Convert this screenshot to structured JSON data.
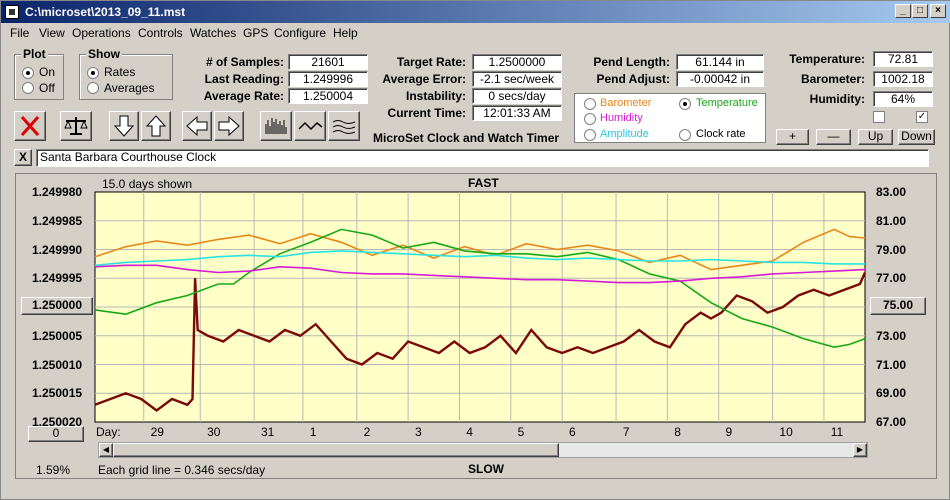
{
  "window": {
    "title": "C:\\microset\\2013_09_11.mst"
  },
  "menu": [
    "File",
    "View",
    "Operations",
    "Controls",
    "Watches",
    "GPS",
    "Configure",
    "Help"
  ],
  "plot": {
    "label": "Plot",
    "on": "On",
    "off": "Off"
  },
  "show": {
    "label": "Show",
    "rates": "Rates",
    "averages": "Averages"
  },
  "stats": {
    "samples_label": "# of Samples:",
    "samples": "21601",
    "last_label": "Last Reading:",
    "last": "1.249996",
    "avg_label": "Average Rate:",
    "avg": "1.250004"
  },
  "target": {
    "rate_label": "Target Rate:",
    "rate": "1.2500000",
    "error_label": "Average Error:",
    "error": "-2.1 sec/week",
    "instability_label": "Instability:",
    "instability": "0 secs/day",
    "time_label": "Current Time:",
    "time": "12:01:33 AM"
  },
  "app_name": "MicroSet Clock and Watch Timer",
  "pendulum": {
    "length_label": "Pend Length:",
    "length": "61.144 in",
    "adjust_label": "Pend Adjust:",
    "adjust": "-0.00042 in"
  },
  "env": {
    "temp_label": "Temperature:",
    "temp": "72.81",
    "baro_label": "Barometer:",
    "baro": "1002.18",
    "hum_label": "Humidity:",
    "hum": "64%"
  },
  "overlay": {
    "barometer": "Barometer",
    "temperature": "Temperature",
    "humidity": "Humidity",
    "amplitude": "Amplitude",
    "clock_rate": "Clock rate"
  },
  "env_buttons": {
    "plus": "+",
    "minus": "—",
    "up": "Up",
    "down": "Down"
  },
  "clock_name": "Santa Barbara Courthouse Clock",
  "close_x": "X",
  "colors": {
    "barometer": "#e8861a",
    "temperature": "#17a817",
    "humidity": "#d61ad6",
    "amplitude": "#29e3e3",
    "rate": "#7a0a0a",
    "plot_bg": "#ffffc8"
  },
  "chart_data": {
    "type": "line",
    "days_shown": "15.0 days shown",
    "top_label": "FAST",
    "bottom_label": "SLOW",
    "grid_note": "Each grid line = 0.346 secs/day",
    "percent": "1.59%",
    "center_left": "1.250000",
    "center_right": "75.00",
    "offset_button": "0",
    "day_prefix": "Day:",
    "y_left_ticks": [
      "1.249980",
      "1.249985",
      "1.249990",
      "1.249995",
      "1.250000",
      "1.250005",
      "1.250010",
      "1.250015",
      "1.250020"
    ],
    "y_right_ticks": [
      "83.00",
      "81.00",
      "79.00",
      "77.00",
      "75.00",
      "73.00",
      "71.00",
      "69.00",
      "67.00"
    ],
    "x_day_labels": [
      {
        "day": "29",
        "t": 1.2
      },
      {
        "day": "30",
        "t": 2.3
      },
      {
        "day": "31",
        "t": 3.35
      },
      {
        "day": "1",
        "t": 4.3
      },
      {
        "day": "2",
        "t": 5.35
      },
      {
        "day": "3",
        "t": 6.35
      },
      {
        "day": "4",
        "t": 7.35
      },
      {
        "day": "5",
        "t": 8.35
      },
      {
        "day": "6",
        "t": 9.35
      },
      {
        "day": "7",
        "t": 10.4
      },
      {
        "day": "8",
        "t": 11.4
      },
      {
        "day": "9",
        "t": 12.4
      },
      {
        "day": "10",
        "t": 13.45
      },
      {
        "day": "11",
        "t": 14.45
      }
    ],
    "x_range_days": [
      0,
      15
    ],
    "rate_range": [
      1.24998,
      1.25002
    ],
    "env_range": [
      67,
      83
    ],
    "series": [
      {
        "key": "rate",
        "color": "#7a0a0a",
        "t": [
          0,
          0.3,
          0.6,
          0.9,
          1.2,
          1.5,
          1.8,
          1.9,
          1.95,
          2.0,
          2.2,
          2.5,
          2.8,
          3.1,
          3.4,
          3.7,
          4.0,
          4.3,
          4.6,
          4.9,
          5.2,
          5.5,
          5.8,
          6.1,
          6.4,
          6.7,
          7.0,
          7.3,
          7.6,
          7.9,
          8.2,
          8.5,
          8.8,
          9.1,
          9.4,
          9.7,
          10.0,
          10.3,
          10.6,
          10.9,
          11.2,
          11.5,
          11.8,
          12.0,
          12.2,
          12.5,
          12.8,
          13.1,
          13.4,
          13.7,
          14.0,
          14.3,
          14.6,
          14.9,
          15.0
        ],
        "v": [
          1.250017,
          1.250016,
          1.250015,
          1.250016,
          1.250018,
          1.250016,
          1.250017,
          1.250016,
          1.249995,
          1.250004,
          1.250005,
          1.250006,
          1.250004,
          1.250005,
          1.250006,
          1.250004,
          1.250005,
          1.250003,
          1.250006,
          1.250009,
          1.25001,
          1.250008,
          1.250009,
          1.250006,
          1.250007,
          1.250008,
          1.250006,
          1.250008,
          1.250007,
          1.250005,
          1.250008,
          1.250004,
          1.250007,
          1.250008,
          1.250007,
          1.250008,
          1.250007,
          1.250006,
          1.250004,
          1.250006,
          1.250007,
          1.250003,
          1.250001,
          1.250002,
          1.250001,
          1.249998,
          1.249999,
          1.250001,
          1.25,
          1.249998,
          1.249997,
          1.249998,
          1.249997,
          1.249996,
          1.249994
        ]
      },
      {
        "key": "barometer",
        "color": "#e8861a",
        "t": [
          0,
          0.6,
          1.2,
          1.8,
          2.4,
          3.0,
          3.6,
          4.2,
          4.8,
          5.4,
          6.0,
          6.6,
          7.2,
          7.8,
          8.4,
          9.0,
          9.6,
          10.2,
          10.8,
          11.4,
          12.0,
          12.6,
          13.2,
          13.8,
          14.4,
          14.7,
          15.0
        ],
        "v": [
          78.5,
          79.2,
          79.6,
          79.3,
          79.7,
          80.0,
          79.4,
          80.1,
          79.5,
          78.6,
          79.3,
          78.4,
          79.2,
          78.6,
          79.4,
          79.0,
          79.3,
          78.9,
          78.1,
          78.6,
          77.6,
          77.9,
          78.2,
          79.5,
          80.4,
          79.9,
          79.8
        ]
      },
      {
        "key": "temperature",
        "color": "#17a817",
        "t": [
          0,
          0.6,
          1.2,
          1.8,
          2.4,
          2.7,
          3.0,
          3.6,
          4.2,
          4.8,
          5.4,
          6.0,
          6.6,
          7.2,
          7.8,
          8.4,
          9.0,
          9.6,
          10.2,
          10.8,
          11.4,
          12.0,
          12.6,
          13.2,
          13.8,
          14.4,
          14.7,
          15.0
        ],
        "v": [
          74.8,
          74.5,
          75.3,
          75.8,
          76.6,
          76.6,
          77.4,
          78.7,
          79.5,
          80.4,
          80.0,
          79.1,
          79.5,
          78.9,
          78.7,
          78.7,
          78.5,
          78.8,
          78.3,
          77.3,
          76.8,
          75.3,
          74.2,
          73.6,
          72.8,
          72.2,
          72.4,
          72.8
        ]
      },
      {
        "key": "humidity",
        "color": "#d61ad6",
        "t": [
          0,
          0.6,
          1.2,
          1.8,
          2.4,
          3.0,
          3.6,
          4.2,
          4.8,
          5.4,
          6.0,
          6.6,
          7.2,
          7.8,
          8.4,
          9.0,
          9.6,
          10.2,
          10.8,
          11.4,
          12.0,
          12.6,
          13.2,
          13.8,
          14.4,
          15.0
        ],
        "v": [
          77.8,
          77.9,
          77.9,
          77.6,
          77.4,
          77.5,
          77.8,
          77.7,
          77.4,
          77.3,
          77.3,
          77.2,
          77.1,
          77.0,
          76.9,
          76.9,
          76.8,
          76.7,
          76.7,
          76.8,
          77.0,
          77.1,
          77.3,
          77.4,
          77.5,
          77.6
        ]
      },
      {
        "key": "amplitude",
        "color": "#29e3e3",
        "t": [
          0,
          0.6,
          1.2,
          1.8,
          2.4,
          3.0,
          3.6,
          4.2,
          4.8,
          5.4,
          6.0,
          6.6,
          7.2,
          7.8,
          8.4,
          9.0,
          9.6,
          10.2,
          10.8,
          11.4,
          12.0,
          12.6,
          13.2,
          13.8,
          14.4,
          15.0
        ],
        "v": [
          77.9,
          78.1,
          78.2,
          78.3,
          78.5,
          78.6,
          78.5,
          78.8,
          78.9,
          78.8,
          78.7,
          78.6,
          78.5,
          78.6,
          78.4,
          78.3,
          78.4,
          78.3,
          78.2,
          78.2,
          78.3,
          78.2,
          78.1,
          78.1,
          78.0,
          78.0
        ]
      }
    ]
  }
}
